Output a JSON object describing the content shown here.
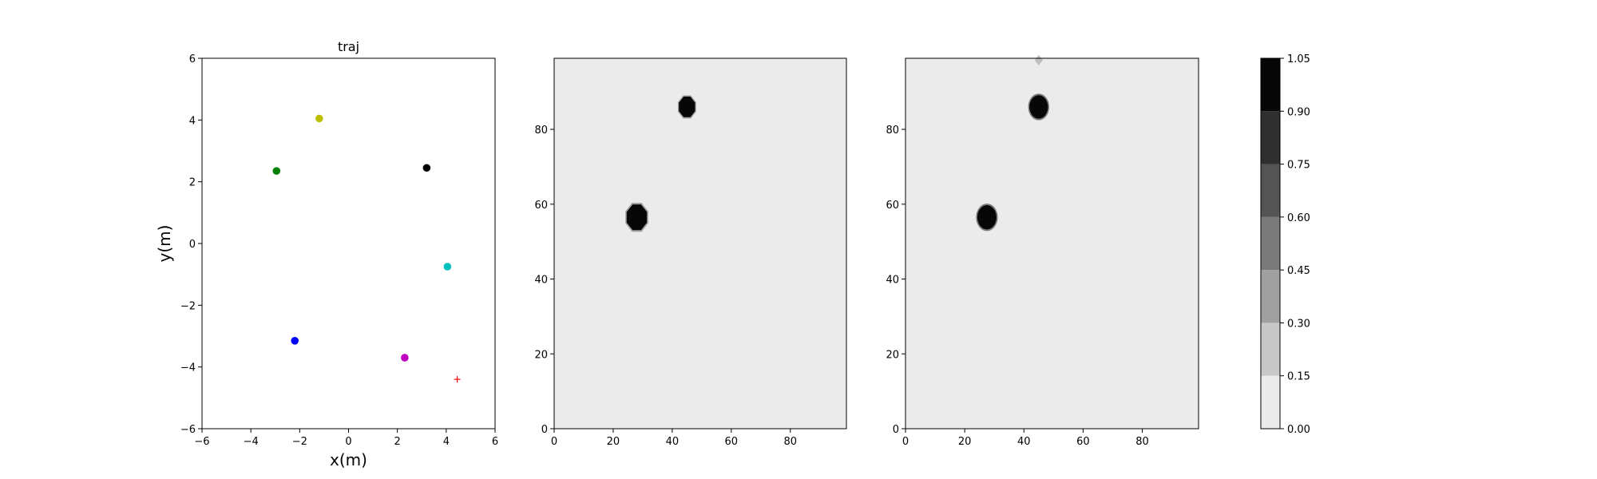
{
  "chart_data": [
    {
      "type": "scatter",
      "title": "traj",
      "xlabel": "x(m)",
      "ylabel": "y(m)",
      "xlim": [
        -6,
        6
      ],
      "ylim": [
        -6,
        6
      ],
      "xticks": [
        -6,
        -4,
        -2,
        0,
        2,
        4,
        6
      ],
      "yticks": [
        -6,
        -4,
        -2,
        0,
        2,
        4,
        6
      ],
      "grid": false,
      "points": [
        {
          "x": -1.2,
          "y": 4.05,
          "color": "#bfbf00",
          "marker": "circle"
        },
        {
          "x": -2.95,
          "y": 2.35,
          "color": "#008000",
          "marker": "circle"
        },
        {
          "x": 3.2,
          "y": 2.45,
          "color": "#000000",
          "marker": "circle"
        },
        {
          "x": 4.05,
          "y": -0.75,
          "color": "#00bfbf",
          "marker": "circle"
        },
        {
          "x": -2.2,
          "y": -3.15,
          "color": "#0000ff",
          "marker": "circle"
        },
        {
          "x": 2.3,
          "y": -3.7,
          "color": "#bf00bf",
          "marker": "circle"
        },
        {
          "x": 4.45,
          "y": -4.4,
          "color": "#ff0000",
          "marker": "plus"
        }
      ]
    },
    {
      "type": "heatmap",
      "title": "",
      "xlim": [
        0,
        99
      ],
      "ylim": [
        0,
        99
      ],
      "xticks": [
        0,
        20,
        40,
        60,
        80
      ],
      "yticks": [
        0,
        20,
        40,
        60,
        80
      ],
      "background_value": 0.05,
      "blobs": [
        {
          "cx": 45,
          "cy": 86,
          "r": 3.2,
          "value": 1.0,
          "shape": "octagon"
        },
        {
          "cx": 28,
          "cy": 56.5,
          "r": 4.0,
          "value": 1.0,
          "shape": "octagon"
        }
      ]
    },
    {
      "type": "heatmap",
      "title": "",
      "xlim": [
        0,
        99
      ],
      "ylim": [
        0,
        99
      ],
      "xticks": [
        0,
        20,
        40,
        60,
        80
      ],
      "yticks": [
        0,
        20,
        40,
        60,
        80
      ],
      "background_value": 0.05,
      "blobs": [
        {
          "cx": 45,
          "cy": 86,
          "r": 3.3,
          "value": 1.0,
          "shape": "circle"
        },
        {
          "cx": 27.5,
          "cy": 56.5,
          "r": 3.4,
          "value": 1.0,
          "shape": "circle"
        },
        {
          "cx": 45,
          "cy": 98.5,
          "r": 1.4,
          "value": 0.3,
          "shape": "diamond"
        }
      ]
    }
  ],
  "colorbar": {
    "ticks": [
      "0.00",
      "0.15",
      "0.30",
      "0.45",
      "0.60",
      "0.75",
      "0.90",
      "1.05"
    ],
    "levels": [
      0.0,
      0.15,
      0.3,
      0.45,
      0.6,
      0.75,
      0.9,
      1.05
    ],
    "colors": [
      "#ebebeb",
      "#c8c8c8",
      "#a0a0a0",
      "#7a7a7a",
      "#545454",
      "#2f2f2f",
      "#070707"
    ]
  }
}
